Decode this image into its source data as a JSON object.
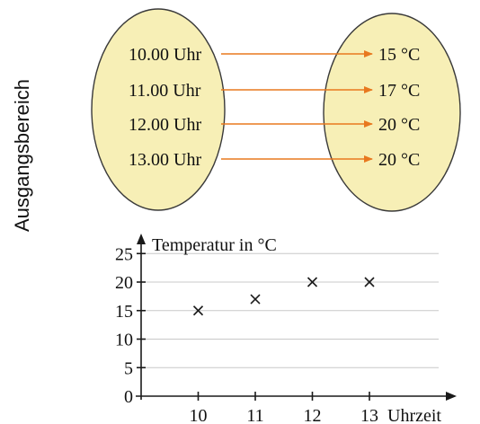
{
  "side_label": "Ausgangsbereich",
  "mapping": {
    "domain": [
      "10.00 Uhr",
      "11.00 Uhr",
      "12.00 Uhr",
      "13.00 Uhr"
    ],
    "codomain": [
      "15 °C",
      "17 °C",
      "20 °C",
      "20 °C"
    ],
    "ellipse_fill": "#f7efb6",
    "ellipse_stroke": "#3a3a3a",
    "arrow_color": "#e8781f"
  },
  "chart_data": {
    "type": "scatter",
    "ylabel": "Temperatur in °C",
    "xlabel": "Uhrzeit",
    "x_ticks": [
      10,
      11,
      12,
      13
    ],
    "y_ticks": [
      0,
      5,
      10,
      15,
      20,
      25
    ],
    "xlim": [
      9,
      14
    ],
    "ylim": [
      0,
      27
    ],
    "grid": true,
    "marker": "x",
    "points": [
      {
        "x": 10,
        "y": 15
      },
      {
        "x": 11,
        "y": 17
      },
      {
        "x": 12,
        "y": 20
      },
      {
        "x": 13,
        "y": 20
      }
    ]
  }
}
